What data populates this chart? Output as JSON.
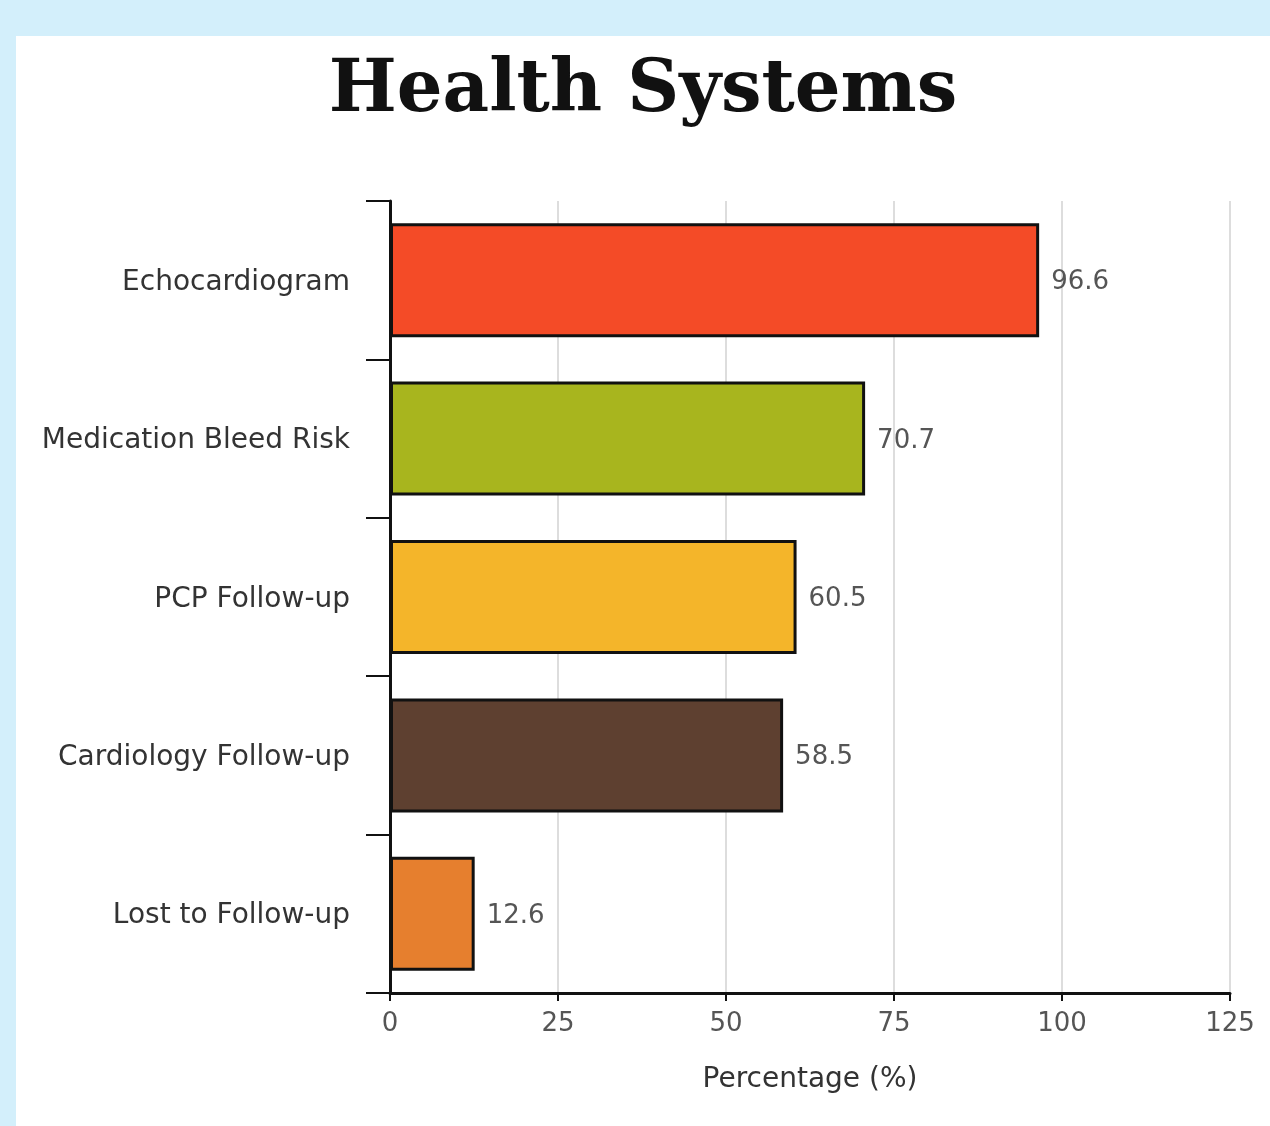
{
  "chart_data": {
    "type": "bar",
    "title": "Health Systems",
    "xlabel": "Percentage (%)",
    "orientation": "horizontal",
    "categories": [
      "Echocardiogram",
      "Medication Bleed Risk",
      "PCP Follow-up",
      "Cardiology Follow-up",
      "Lost to Follow-up"
    ],
    "values": [
      96.6,
      70.7,
      60.5,
      58.5,
      12.6
    ],
    "colors": [
      "#f44b27",
      "#a8b51e",
      "#f4b52a",
      "#5e4030",
      "#e67f2e"
    ],
    "xlim": [
      0,
      125
    ],
    "xticks": [
      0,
      25,
      50,
      75,
      100,
      125
    ],
    "grid": "x",
    "data_labels": true
  }
}
